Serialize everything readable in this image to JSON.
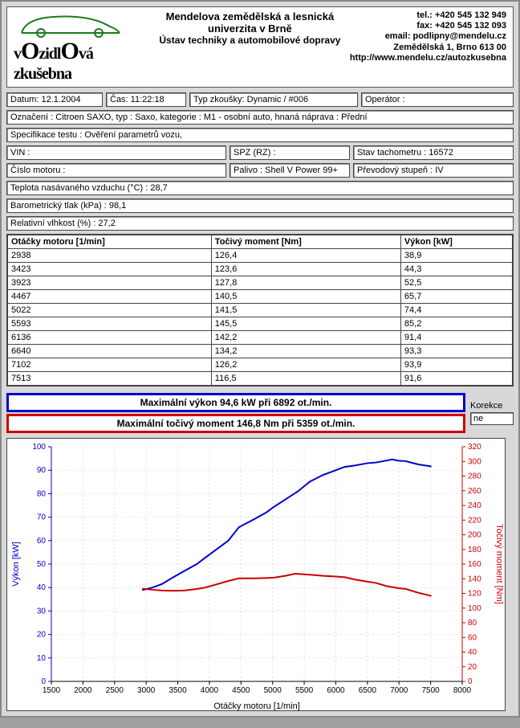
{
  "header": {
    "institution": "Mendelova zemědělská a lesnická univerzita v Brně",
    "department": "Ústav techniky a automobilové dopravy",
    "logo_line": "vOzidlOvá zkušebna",
    "contact": {
      "tel": "tel.: +420 545 132 949",
      "fax": "fax: +420 545 132 093",
      "email": "email: podlipny@mendelu.cz",
      "address": "Zemědělská 1, Brno 613 00",
      "web": "http://www.mendelu.cz/autozkusebna"
    }
  },
  "fields": {
    "datum": "Datum: 12.1.2004",
    "cas": "Čas: 11:22:18",
    "typ_zkousky": "Typ zkoušky: Dynamic / #006",
    "operator": "Operátor :",
    "oznaceni": "Označení : Citroen SAXO, typ : Saxo, kategorie : M1 - osobní auto, hnaná náprava : Přední",
    "specifikace": "Specifikace testu : Ověření parametrů vozu,",
    "vin": "VIN :",
    "spz": "SPZ (RZ) :",
    "stav_tacho": "Stav tachometru : 16572",
    "cislo_motoru": "Číslo motoru :",
    "palivo": "Palivo : Shell V Power 99+",
    "prevod": "Převodový stupeň : IV",
    "teplota": "Teplota nasávaného vzduchu (°C) : 28,7",
    "barometr": "Barometrický tlak (kPa) : 98,1",
    "vlhkost": "Relativní vlhkost (%) : 27,2"
  },
  "table": {
    "headers": [
      "Otáčky motoru [1/min]",
      "Točivý moment [Nm]",
      "Výkon [kW]"
    ],
    "rows": [
      [
        "2938",
        "126,4",
        "38,9"
      ],
      [
        "3423",
        "123,6",
        "44,3"
      ],
      [
        "3923",
        "127,8",
        "52,5"
      ],
      [
        "4467",
        "140,5",
        "65,7"
      ],
      [
        "5022",
        "141,5",
        "74,4"
      ],
      [
        "5593",
        "145,5",
        "85,2"
      ],
      [
        "6136",
        "142,2",
        "91,4"
      ],
      [
        "6640",
        "134,2",
        "93,3"
      ],
      [
        "7102",
        "126,2",
        "93,9"
      ],
      [
        "7513",
        "116,5",
        "91,6"
      ]
    ]
  },
  "max": {
    "power": "Maximální výkon 94,6 kW při 6892 ot./min.",
    "torque": "Maximální točivý moment 146,8 Nm při 5359 ot./min.",
    "korekce_label": "Korekce",
    "korekce_value": "ne"
  },
  "chart": {
    "type": "line",
    "x_label": "Otáčky motoru [1/min]",
    "y_label_left": "Výkon [kW]",
    "y_label_right": "Točivý moment [Nm]",
    "xlim": [
      1500,
      8000
    ],
    "xtick_step": 500,
    "ylim_left": [
      0,
      100
    ],
    "ytick_left_step": 10,
    "ylim_right": [
      0,
      320
    ],
    "ytick_right_step": 20,
    "background_color": "#ffffff",
    "grid_color": "#e0e0e0",
    "power_color": "#0000cc",
    "torque_color": "#cc0000",
    "axis_left_color": "#0000cc",
    "axis_right_color": "#cc0000",
    "line_width": 2,
    "power_series": [
      [
        2938,
        38.9
      ],
      [
        3100,
        40
      ],
      [
        3250,
        41.5
      ],
      [
        3423,
        44.3
      ],
      [
        3600,
        47
      ],
      [
        3800,
        50
      ],
      [
        3923,
        52.5
      ],
      [
        4100,
        56
      ],
      [
        4300,
        60
      ],
      [
        4467,
        65.7
      ],
      [
        4700,
        69
      ],
      [
        4900,
        72
      ],
      [
        5022,
        74.4
      ],
      [
        5200,
        77.5
      ],
      [
        5400,
        81
      ],
      [
        5593,
        85.2
      ],
      [
        5800,
        88
      ],
      [
        6000,
        90
      ],
      [
        6136,
        91.4
      ],
      [
        6300,
        92
      ],
      [
        6500,
        93
      ],
      [
        6640,
        93.3
      ],
      [
        6892,
        94.6
      ],
      [
        7000,
        94
      ],
      [
        7102,
        93.9
      ],
      [
        7300,
        92.5
      ],
      [
        7513,
        91.6
      ]
    ],
    "torque_series": [
      [
        2938,
        126.4
      ],
      [
        3100,
        125
      ],
      [
        3250,
        124
      ],
      [
        3423,
        123.6
      ],
      [
        3600,
        124
      ],
      [
        3800,
        126
      ],
      [
        3923,
        127.8
      ],
      [
        4100,
        132
      ],
      [
        4300,
        137
      ],
      [
        4467,
        140.5
      ],
      [
        4700,
        140.5
      ],
      [
        4900,
        141
      ],
      [
        5022,
        141.5
      ],
      [
        5200,
        144
      ],
      [
        5359,
        146.8
      ],
      [
        5500,
        146
      ],
      [
        5593,
        145.5
      ],
      [
        5800,
        144
      ],
      [
        6000,
        143
      ],
      [
        6136,
        142.2
      ],
      [
        6300,
        139
      ],
      [
        6500,
        136
      ],
      [
        6640,
        134.2
      ],
      [
        6800,
        130
      ],
      [
        7000,
        127
      ],
      [
        7102,
        126.2
      ],
      [
        7300,
        121
      ],
      [
        7513,
        116.5
      ]
    ]
  }
}
